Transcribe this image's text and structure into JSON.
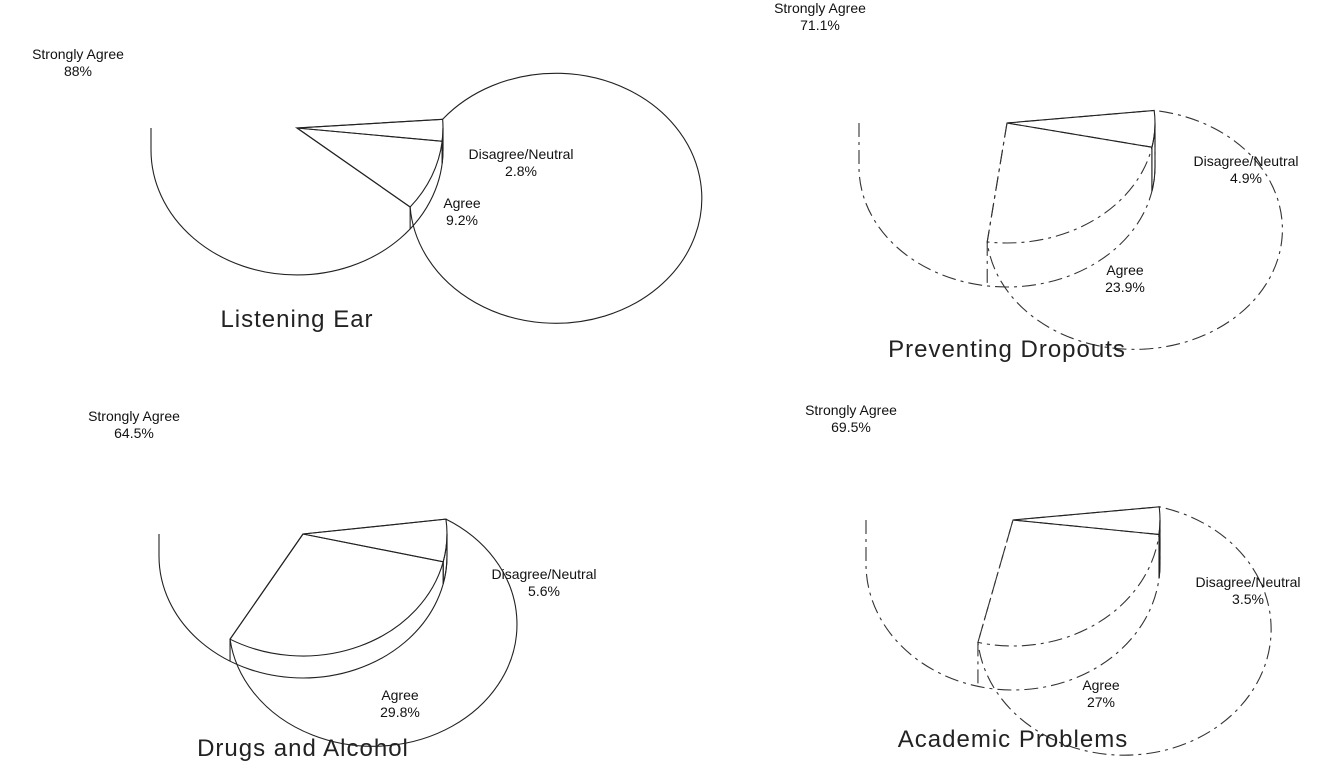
{
  "chart_data": [
    {
      "type": "pie",
      "title": "Listening Ear",
      "slices": [
        {
          "label": "Strongly Agree",
          "value": 88,
          "value_text": "88%",
          "hatched": false
        },
        {
          "label": "Disagree/Neutral",
          "value": 2.8,
          "value_text": "2.8%",
          "hatched": true
        },
        {
          "label": "Agree",
          "value": 9.2,
          "value_text": "9.2%",
          "hatched": false
        }
      ]
    },
    {
      "type": "pie",
      "title": "Preventing Dropouts",
      "slices": [
        {
          "label": "Strongly Agree",
          "value": 71.1,
          "value_text": "71.1%",
          "hatched": false
        },
        {
          "label": "Disagree/Neutral",
          "value": 4.9,
          "value_text": "4.9%",
          "hatched": true
        },
        {
          "label": "Agree",
          "value": 23.9,
          "value_text": "23.9%",
          "hatched": false
        }
      ]
    },
    {
      "type": "pie",
      "title": "Drugs and Alcohol",
      "slices": [
        {
          "label": "Strongly Agree",
          "value": 64.5,
          "value_text": "64.5%",
          "hatched": false
        },
        {
          "label": "Disagree/Neutral",
          "value": 5.6,
          "value_text": "5.6%",
          "hatched": true
        },
        {
          "label": "Agree",
          "value": 29.8,
          "value_text": "29.8%",
          "hatched": false
        }
      ]
    },
    {
      "type": "pie",
      "title": "Academic Problems",
      "slices": [
        {
          "label": "Strongly Agree",
          "value": 69.5,
          "value_text": "69.5%",
          "hatched": false
        },
        {
          "label": "Disagree/Neutral",
          "value": 3.5,
          "value_text": "3.5%",
          "hatched": true
        },
        {
          "label": "Agree",
          "value": 27,
          "value_text": "27%",
          "hatched": false
        }
      ]
    }
  ]
}
